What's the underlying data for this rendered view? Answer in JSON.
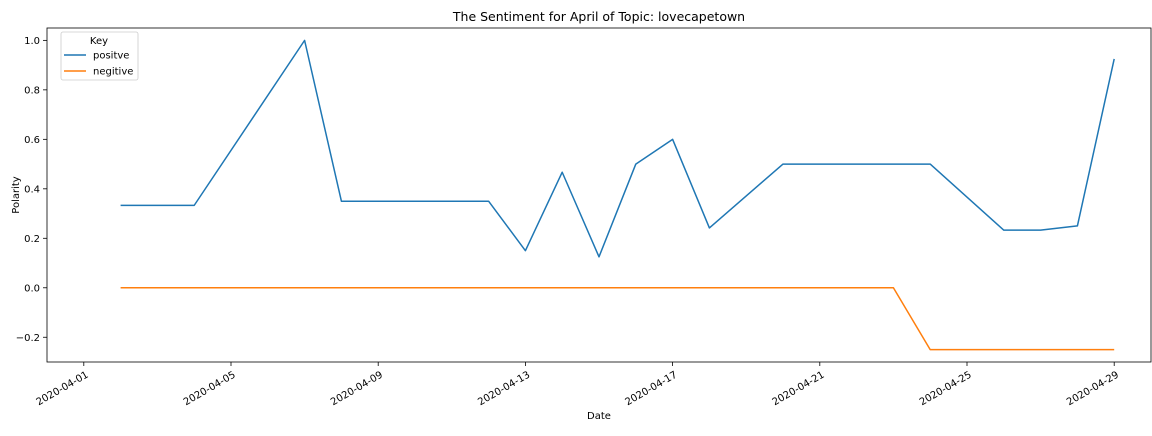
{
  "chart_data": {
    "type": "line",
    "title": "The Sentiment for April of Topic: lovecapetown",
    "xlabel": "Date",
    "ylabel": "Polarity",
    "x_axis_type": "date",
    "xlim": [
      "2020-03-31",
      "2020-04-30"
    ],
    "ylim": [
      -0.3,
      1.05
    ],
    "x_ticks": [
      "2020-04-01",
      "2020-04-05",
      "2020-04-09",
      "2020-04-13",
      "2020-04-17",
      "2020-04-21",
      "2020-04-25",
      "2020-04-29"
    ],
    "y_ticks": [
      -0.2,
      0.0,
      0.2,
      0.4,
      0.6,
      0.8,
      1.0
    ],
    "grid": false,
    "legend": {
      "title": "Key",
      "position": "top-left"
    },
    "series": [
      {
        "name": "positve",
        "color": "#1f77b4",
        "points": [
          {
            "x": "2020-04-02",
            "y": 0.333
          },
          {
            "x": "2020-04-04",
            "y": 0.333
          },
          {
            "x": "2020-04-07",
            "y": 1.0
          },
          {
            "x": "2020-04-08",
            "y": 0.35
          },
          {
            "x": "2020-04-12",
            "y": 0.35
          },
          {
            "x": "2020-04-13",
            "y": 0.15
          },
          {
            "x": "2020-04-14",
            "y": 0.467
          },
          {
            "x": "2020-04-15",
            "y": 0.125
          },
          {
            "x": "2020-04-16",
            "y": 0.5
          },
          {
            "x": "2020-04-17",
            "y": 0.6
          },
          {
            "x": "2020-04-18",
            "y": 0.242
          },
          {
            "x": "2020-04-20",
            "y": 0.5
          },
          {
            "x": "2020-04-24",
            "y": 0.5
          },
          {
            "x": "2020-04-26",
            "y": 0.233
          },
          {
            "x": "2020-04-27",
            "y": 0.233
          },
          {
            "x": "2020-04-28",
            "y": 0.25
          },
          {
            "x": "2020-04-29",
            "y": 0.925
          }
        ]
      },
      {
        "name": "negitive",
        "color": "#ff7f0e",
        "points": [
          {
            "x": "2020-04-02",
            "y": 0.0
          },
          {
            "x": "2020-04-23",
            "y": 0.0
          },
          {
            "x": "2020-04-24",
            "y": -0.25
          },
          {
            "x": "2020-04-29",
            "y": -0.25
          }
        ]
      }
    ]
  }
}
